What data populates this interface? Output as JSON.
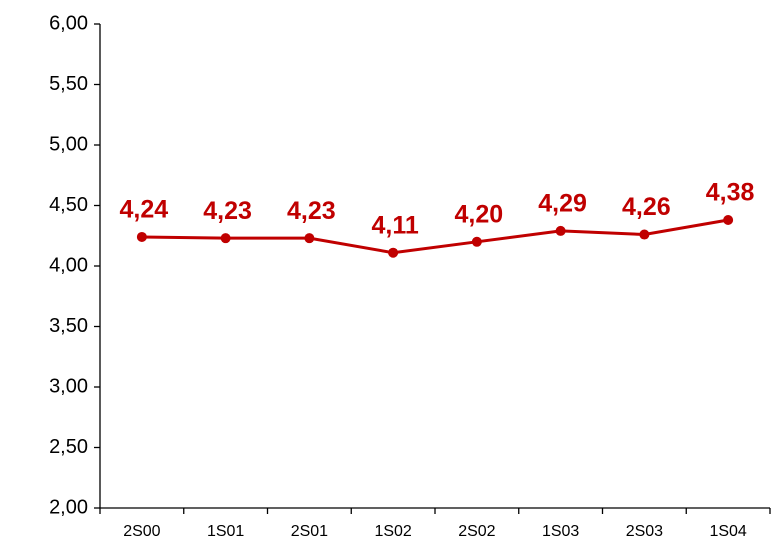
{
  "chart_data": {
    "type": "line",
    "categories": [
      "2S00",
      "1S01",
      "2S01",
      "1S02",
      "2S02",
      "1S03",
      "2S03",
      "1S04"
    ],
    "values": [
      4.24,
      4.23,
      4.23,
      4.11,
      4.2,
      4.29,
      4.26,
      4.38
    ],
    "value_labels": [
      "4,24",
      "4,23",
      "4,23",
      "4,11",
      "4,20",
      "4,29",
      "4,26",
      "4,38"
    ],
    "color": "#c00000",
    "ylim": [
      2,
      6
    ],
    "yticks": [
      {
        "value": 2,
        "label": "2,00"
      },
      {
        "value": 2.5,
        "label": "2,50"
      },
      {
        "value": 3,
        "label": "3,00"
      },
      {
        "value": 3.5,
        "label": "3,50"
      },
      {
        "value": 4,
        "label": "4,00"
      },
      {
        "value": 4.5,
        "label": "4,50"
      },
      {
        "value": 5,
        "label": "5,00"
      },
      {
        "value": 5.5,
        "label": "5,50"
      },
      {
        "value": 6,
        "label": "6,00"
      }
    ],
    "grid": false
  }
}
